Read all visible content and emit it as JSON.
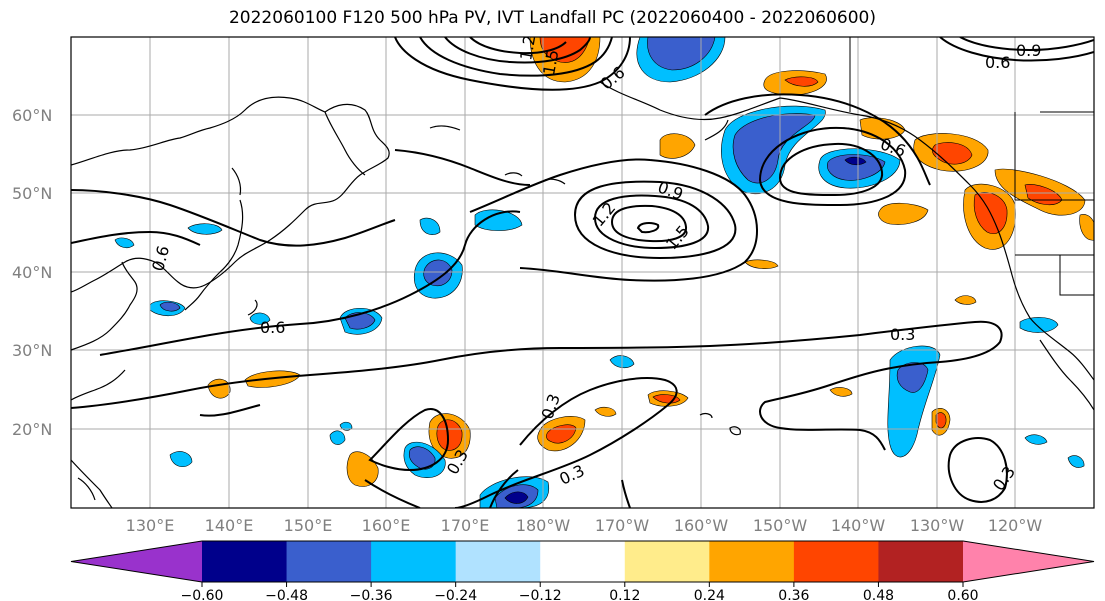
{
  "title": "2022060100 F120 500 hPa PV, IVT Landfall PC (2022060400 - 2022060600)",
  "lat_labels": [
    "60°N",
    "50°N",
    "40°N",
    "30°N",
    "20°N"
  ],
  "lon_labels": [
    "130°E",
    "140°E",
    "150°E",
    "160°E",
    "170°E",
    "180°W",
    "170°W",
    "160°W",
    "150°W",
    "140°W",
    "130°W",
    "120°W"
  ],
  "colorbar": {
    "ticks": [
      "−0.60",
      "−0.48",
      "−0.36",
      "−0.24",
      "−0.12",
      "0.12",
      "0.24",
      "0.36",
      "0.48",
      "0.60"
    ],
    "colors": [
      "#9932cc",
      "#00008b",
      "#3a5fcd",
      "#00bfff",
      "#b0e2ff",
      "#ffffff",
      "#ffec8b",
      "#ffa500",
      "#ff4500",
      "#b22222",
      "#ff82ab"
    ]
  },
  "contour_labels": [
    "0.6",
    "0.9",
    "1.2",
    "1.5",
    "0.3",
    "0.3",
    "0.3",
    "0.3",
    "0.3",
    "0.6",
    "0.9",
    "0.6",
    "0.6",
    "1.2",
    "1.5",
    "0.6"
  ]
}
